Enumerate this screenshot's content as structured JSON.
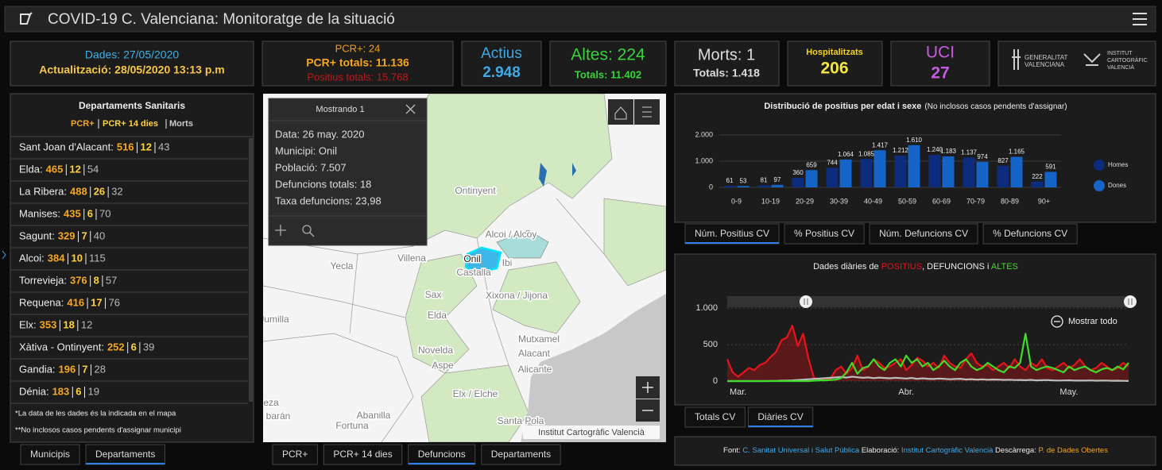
{
  "header": {
    "title": "COVID-19 C. Valenciana: Monitoratge de la situació"
  },
  "stats": {
    "dades": "Dades: 27/05/2020",
    "actualitzacio": "Actualització: 28/05/2020 13:13 p.m",
    "pcr": "PCR+: 24",
    "pcr_totals": "PCR+ totals: 11.136",
    "positius_totals": "Positius totals: 15.768",
    "actius_label": "Actius",
    "actius_value": "2.948",
    "altes": "Altes: 224",
    "altes_totals": "Totals: 11.402",
    "morts": "Morts: 1",
    "morts_totals": "Totals: 1.418",
    "hosp_label": "Hospitalitzats",
    "hosp_value": "206",
    "uci_label": "UCI",
    "uci_value": "27"
  },
  "logos": {
    "gva": [
      "GENERALITAT",
      "VALENCIANA"
    ],
    "icv": [
      "INSTITUT",
      "CARTOGRÀFIC",
      "VALENCIÀ"
    ]
  },
  "departments": {
    "title": "Departaments Sanitaris",
    "legend": [
      "PCR+",
      "PCR+ 14 dies",
      "Morts"
    ],
    "rows": [
      {
        "name": "Sant Joan d'Alacant:",
        "pcr": 516,
        "pcr14": 12,
        "morts": 43
      },
      {
        "name": "Elda:",
        "pcr": 465,
        "pcr14": 12,
        "morts": 54
      },
      {
        "name": "La Ribera:",
        "pcr": 488,
        "pcr14": 26,
        "morts": 32
      },
      {
        "name": "Manises:",
        "pcr": 435,
        "pcr14": 6,
        "morts": 70
      },
      {
        "name": "Sagunt:",
        "pcr": 329,
        "pcr14": 7,
        "morts": 40
      },
      {
        "name": "Alcoi:",
        "pcr": 384,
        "pcr14": 10,
        "morts": 115
      },
      {
        "name": "Torrevieja:",
        "pcr": 376,
        "pcr14": 8,
        "morts": 57
      },
      {
        "name": "Requena:",
        "pcr": 416,
        "pcr14": 17,
        "morts": 76
      },
      {
        "name": "Elx:",
        "pcr": 353,
        "pcr14": 18,
        "morts": 12
      },
      {
        "name": "Xàtiva - Ontinyent:",
        "pcr": 252,
        "pcr14": 6,
        "morts": 39
      },
      {
        "name": "Gandia:",
        "pcr": 196,
        "pcr14": 7,
        "morts": 28
      },
      {
        "name": "Dénia:",
        "pcr": 183,
        "pcr14": 6,
        "morts": 19
      }
    ],
    "notes": [
      "*La data de les dades és la indicada en el mapa",
      "**No inclosos casos pendents d'assignar municipi"
    ]
  },
  "tabs": {
    "left": {
      "items": [
        "Municipis",
        "Departaments"
      ],
      "active": 1
    },
    "map": {
      "items": [
        "PCR+",
        "PCR+ 14 dies",
        "Defuncions",
        "Departaments"
      ],
      "active": 2
    },
    "chart1": {
      "items": [
        "Núm. Positius CV",
        "% Positius CV",
        "Núm. Defuncions CV",
        "% Defuncions CV"
      ],
      "active": 0
    },
    "chart2": {
      "items": [
        "Totals CV",
        "Diàries CV"
      ],
      "active": 1
    }
  },
  "map": {
    "popup": {
      "title": "Mostrando 1",
      "lines": [
        "Data: 26 may. 2020",
        "Municipi: Onil",
        "Població: 7.507",
        "Defuncions totals: 18",
        "Taxa defuncions: 23,98"
      ]
    },
    "labels": [
      "Ontinyent",
      "Alcoi / Alcoy",
      "Villena",
      "Onil",
      "Ibi",
      "Castalla",
      "Yecla",
      "Sax",
      "Xixona / Jijona",
      "Jumilla",
      "Elda",
      "Novelda",
      "Aspe",
      "Mutxamel",
      "Alacant",
      "Alicante",
      "Elx / Elche",
      "Santa Pola",
      "Abanilla",
      "Fortuna",
      "eza",
      "barán"
    ],
    "attribution": "Institut Cartogràfic Valencià"
  },
  "chart_data": [
    {
      "type": "bar",
      "title": "Distribució de positius per edat i sexe",
      "subtitle": "(No inclosos casos pendents d'assignar)",
      "categories": [
        "0-9",
        "10-19",
        "20-29",
        "30-39",
        "40-49",
        "50-59",
        "60-69",
        "70-79",
        "80-89",
        "90+"
      ],
      "series": [
        {
          "name": "Homes",
          "color": "#0e2c7e",
          "values": [
            61,
            81,
            360,
            744,
            1085,
            1212,
            1240,
            1137,
            827,
            222
          ],
          "value_labels": [
            "61",
            "81",
            "360",
            "744",
            "1.085",
            "1.212",
            "1.240",
            "1.137",
            "827",
            "222"
          ]
        },
        {
          "name": "Dones",
          "color": "#1565c8",
          "values": [
            53,
            97,
            659,
            1064,
            1417,
            1610,
            1183,
            974,
            1165,
            591
          ],
          "value_labels": [
            "53",
            "97",
            "659",
            "1.064",
            "1.417",
            "1.610",
            "1.183",
            "974",
            "1.165",
            "591"
          ]
        }
      ],
      "ylim": [
        0,
        2000
      ],
      "yticks": [
        0,
        {
          "value": 1000,
          "label": "1.000"
        },
        {
          "value": 2000,
          "label": "2.000"
        }
      ],
      "grid": true
    },
    {
      "type": "line",
      "title_parts": [
        "Dades diàries de ",
        "POSITIUS",
        ", DEFUNCIONS i ",
        "ALTES"
      ],
      "categories": [
        null,
        null,
        "Mar.",
        null,
        null,
        null,
        null,
        null,
        null,
        null,
        null,
        null,
        null,
        null,
        null,
        null,
        null,
        null,
        null,
        null,
        null,
        null,
        null,
        null,
        null,
        null,
        null,
        null,
        null,
        null,
        null,
        null,
        null,
        "Abr.",
        null,
        null,
        null,
        null,
        null,
        null,
        null,
        null,
        null,
        null,
        null,
        null,
        null,
        null,
        null,
        null,
        null,
        null,
        null,
        null,
        null,
        null,
        null,
        null,
        null,
        null,
        null,
        null,
        null,
        "May.",
        null,
        null,
        null,
        null,
        null,
        null,
        null,
        null,
        null,
        null,
        null
      ],
      "series": [
        {
          "color": "#e8141a",
          "values": [
            300,
            120,
            60,
            120,
            180,
            150,
            220,
            250,
            330,
            400,
            560,
            600,
            760,
            480,
            650,
            300,
            40,
            30,
            20,
            30,
            150,
            200,
            100,
            180,
            350,
            150,
            200,
            300,
            250,
            180,
            200,
            250,
            300,
            150,
            220,
            320,
            280,
            200,
            250,
            180,
            350,
            250,
            200,
            180,
            300,
            380,
            250,
            200,
            220,
            150,
            200,
            250,
            180,
            300,
            200,
            150,
            250,
            200,
            300,
            180,
            150,
            200,
            250,
            180,
            220,
            300,
            200,
            150,
            180,
            250,
            200,
            150,
            180,
            250,
            200
          ]
        },
        {
          "color": "#bdbdbd",
          "values": [
            0,
            0,
            0,
            0,
            0,
            0,
            0,
            0,
            1,
            2,
            5,
            8,
            10,
            15,
            20,
            25,
            30,
            35,
            40,
            45,
            50,
            55,
            48,
            60,
            52,
            45,
            50,
            40,
            48,
            42,
            38,
            45,
            40,
            35,
            42,
            30,
            38,
            32,
            28,
            35,
            30,
            25,
            28,
            32,
            22,
            26,
            20,
            24,
            18,
            22,
            20,
            16,
            18,
            14,
            15,
            12,
            16,
            10,
            12,
            14,
            10,
            8,
            9,
            11,
            7,
            8,
            6,
            9,
            5,
            7,
            6,
            4,
            5,
            3,
            1
          ]
        },
        {
          "color": "#3fdc2a",
          "values": [
            0,
            0,
            0,
            0,
            0,
            0,
            0,
            0,
            0,
            0,
            0,
            0,
            0,
            0,
            0,
            0,
            5,
            10,
            10,
            15,
            20,
            40,
            120,
            250,
            100,
            180,
            200,
            300,
            200,
            150,
            250,
            300,
            200,
            350,
            250,
            300,
            200,
            250,
            150,
            200,
            280,
            200,
            150,
            250,
            300,
            200,
            150,
            180,
            250,
            200,
            150,
            120,
            200,
            180,
            250,
            650,
            200,
            150,
            180,
            200,
            180,
            150,
            120,
            200,
            150,
            180,
            200,
            150,
            120,
            160,
            180,
            150,
            200,
            160,
            250
          ]
        }
      ],
      "ylim": [
        0,
        1100
      ],
      "yticks": [
        0,
        500,
        {
          "value": 1000,
          "label": "1.000"
        }
      ],
      "grid": true,
      "zoom_label": "Mostrar todo"
    }
  ],
  "footer": {
    "parts": [
      "Font: ",
      "C. Sanitat Universal i Salut Pública",
      " Elaboració: ",
      "Institut Cartogràfic Valencià",
      " Descàrrega: ",
      "P. de Dades Obertes"
    ]
  }
}
